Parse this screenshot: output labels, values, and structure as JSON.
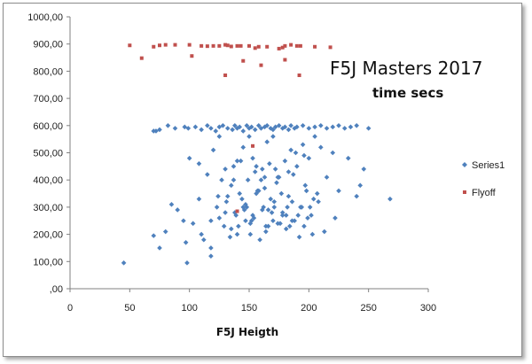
{
  "chart_data": {
    "type": "scatter",
    "title": "F5J Masters 2017",
    "subtitle": "time secs",
    "xlabel": "F5J Heigth",
    "ylabel": "",
    "xlim": [
      0,
      300
    ],
    "ylim": [
      0,
      1000
    ],
    "x_ticks": [
      "0",
      "50",
      "100",
      "150",
      "200",
      "250",
      "300"
    ],
    "y_ticks": [
      ",00",
      "100,00",
      "200,00",
      "300,00",
      "400,00",
      "500,00",
      "600,00",
      "700,00",
      "800,00",
      "900,00",
      "1000,00"
    ],
    "grid": false,
    "legend_position": "right",
    "series": [
      {
        "name": "Series1",
        "color": "#4f81bd",
        "marker": "diamond",
        "x": [
          45,
          70,
          75,
          82,
          88,
          96,
          99,
          105,
          110,
          115,
          118,
          122,
          125,
          128,
          132,
          136,
          138,
          140,
          142,
          145,
          148,
          150,
          152,
          155,
          158,
          160,
          163,
          165,
          168,
          170,
          172,
          175,
          178,
          180,
          183,
          185,
          188,
          190,
          195,
          200,
          205,
          210,
          215,
          220,
          225,
          230,
          235,
          240,
          250,
          75,
          85,
          95,
          100,
          108,
          115,
          120,
          125,
          130,
          135,
          140,
          145,
          150,
          155,
          160,
          165,
          170,
          175,
          180,
          185,
          190,
          195,
          200,
          205,
          210,
          98,
          110,
          118,
          125,
          132,
          138,
          142,
          148,
          153,
          158,
          163,
          168,
          173,
          178,
          183,
          188,
          193,
          198,
          204,
          215,
          225,
          240,
          268,
          70,
          72,
          80,
          90,
          97,
          103,
          108,
          112,
          118,
          123,
          127,
          131,
          135,
          139,
          144,
          147,
          151,
          156,
          161,
          166,
          171,
          176,
          181,
          186,
          191,
          196,
          201,
          207,
          220,
          243,
          246,
          118,
          124,
          130,
          134,
          137,
          141,
          146,
          149,
          154,
          157,
          162,
          164,
          167,
          169,
          174,
          177,
          182,
          184,
          187,
          192,
          197,
          202,
          208,
          213,
          222,
          233,
          140,
          145,
          152,
          159,
          164,
          171,
          178,
          186,
          194,
          203,
          143,
          151,
          156,
          161,
          166,
          170,
          174,
          181,
          189,
          199,
          129,
          137,
          147,
          153,
          163,
          172,
          183,
          196
        ],
        "y": [
          95,
          580,
          585,
          600,
          590,
          595,
          590,
          595,
          585,
          600,
          590,
          580,
          595,
          600,
          590,
          585,
          600,
          590,
          595,
          580,
          600,
          590,
          595,
          585,
          600,
          590,
          595,
          600,
          590,
          585,
          595,
          600,
          590,
          595,
          585,
          600,
          590,
          595,
          600,
          590,
          595,
          600,
          590,
          595,
          600,
          590,
          595,
          600,
          590,
          150,
          310,
          250,
          480,
          460,
          420,
          510,
          560,
          440,
          380,
          470,
          520,
          560,
          430,
          400,
          540,
          560,
          410,
          470,
          510,
          450,
          530,
          480,
          560,
          520,
          95,
          200,
          120,
          260,
          340,
          280,
          350,
          300,
          480,
          360,
          410,
          330,
          390,
          280,
          340,
          250,
          300,
          360,
          330,
          410,
          360,
          340,
          330,
          195,
          580,
          210,
          290,
          170,
          240,
          330,
          180,
          250,
          300,
          400,
          320,
          220,
          270,
          330,
          250,
          200,
          350,
          290,
          230,
          300,
          240,
          220,
          320,
          270,
          230,
          300,
          350,
          500,
          380,
          440,
          150,
          340,
          280,
          190,
          450,
          230,
          290,
          400,
          260,
          360,
          300,
          210,
          460,
          280,
          240,
          350,
          300,
          230,
          420,
          190,
          380,
          270,
          320,
          210,
          260,
          480,
          200,
          300,
          250,
          180,
          230,
          320,
          270,
          250,
          300,
          200,
          470,
          240,
          450,
          440,
          290,
          250,
          410,
          270,
          500,
          260,
          230,
          400,
          310,
          270,
          370,
          440,
          430,
          490
        ]
      },
      {
        "name": "Flyoff",
        "color": "#c0504d",
        "marker": "square",
        "x": [
          50,
          60,
          70,
          75,
          80,
          88,
          100,
          102,
          110,
          115,
          120,
          125,
          130,
          132,
          135,
          140,
          145,
          150,
          155,
          160,
          165,
          175,
          178,
          180,
          185,
          190,
          192,
          205,
          218,
          130,
          143,
          158,
          180,
          193,
          153,
          140
        ],
        "y": [
          895,
          848,
          890,
          895,
          897,
          897,
          897,
          856,
          893,
          892,
          893,
          893,
          897,
          895,
          891,
          893,
          838,
          893,
          885,
          822,
          890,
          883,
          887,
          842,
          897,
          893,
          785,
          890,
          888,
          785,
          893,
          890,
          893,
          893,
          525,
          285
        ]
      }
    ]
  }
}
